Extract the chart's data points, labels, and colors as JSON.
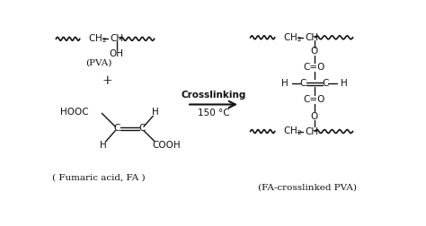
{
  "bg_color": "#ffffff",
  "fig_width": 4.74,
  "fig_height": 2.52,
  "dpi": 100,
  "text_color": "#111111",
  "pva_label": "(PVA)",
  "fa_label": "( Fumaric acid, FA )",
  "product_label": "(FA-crosslinked PVA)",
  "crosslink_label": "Crosslinking",
  "temp_label": "150 °C",
  "plus": "+",
  "hooc": "HOOC",
  "cooh": "COOH",
  "oh": "OH",
  "h": "H",
  "o": "O",
  "c": "C",
  "ceqo": "C=O"
}
